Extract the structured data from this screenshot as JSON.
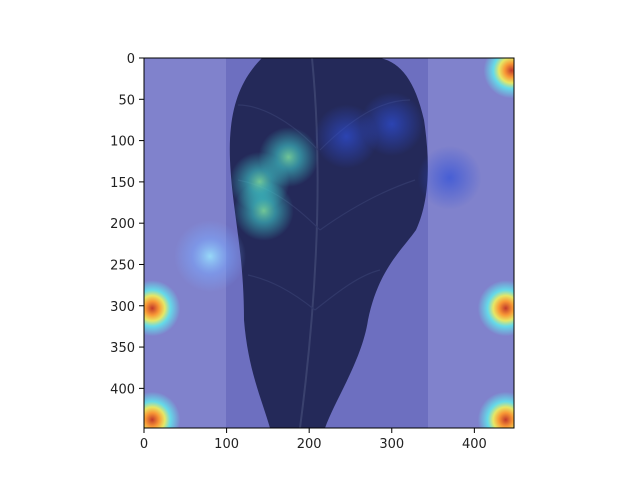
{
  "chart_data": {
    "type": "heatmap",
    "title": "",
    "xlabel": "",
    "ylabel": "",
    "xlim": [
      0,
      448
    ],
    "ylim": [
      448,
      0
    ],
    "x_ticks": [
      0,
      100,
      200,
      300,
      400
    ],
    "y_ticks": [
      0,
      50,
      100,
      150,
      200,
      250,
      300,
      350,
      400
    ],
    "x_tick_labels": [
      "0",
      "100",
      "200",
      "300",
      "400"
    ],
    "y_tick_labels": [
      "0",
      "50",
      "100",
      "150",
      "200",
      "250",
      "300",
      "350",
      "400"
    ],
    "colormap": "jet",
    "base_color": "#6d6fc0",
    "image_content": "dark leaf with class-activation heatmap overlay",
    "hotspots": [
      {
        "x": 445,
        "y": 15,
        "intensity": 1.0
      },
      {
        "x": 10,
        "y": 303,
        "intensity": 0.95
      },
      {
        "x": 438,
        "y": 303,
        "intensity": 0.95
      },
      {
        "x": 10,
        "y": 438,
        "intensity": 0.9
      },
      {
        "x": 438,
        "y": 438,
        "intensity": 0.9
      },
      {
        "x": 80,
        "y": 240,
        "intensity": 0.45
      },
      {
        "x": 140,
        "y": 150,
        "intensity": 0.5
      },
      {
        "x": 145,
        "y": 185,
        "intensity": 0.55
      },
      {
        "x": 175,
        "y": 120,
        "intensity": 0.5
      },
      {
        "x": 245,
        "y": 95,
        "intensity": 0.3
      },
      {
        "x": 300,
        "y": 80,
        "intensity": 0.3
      },
      {
        "x": 370,
        "y": 145,
        "intensity": 0.25
      }
    ]
  }
}
